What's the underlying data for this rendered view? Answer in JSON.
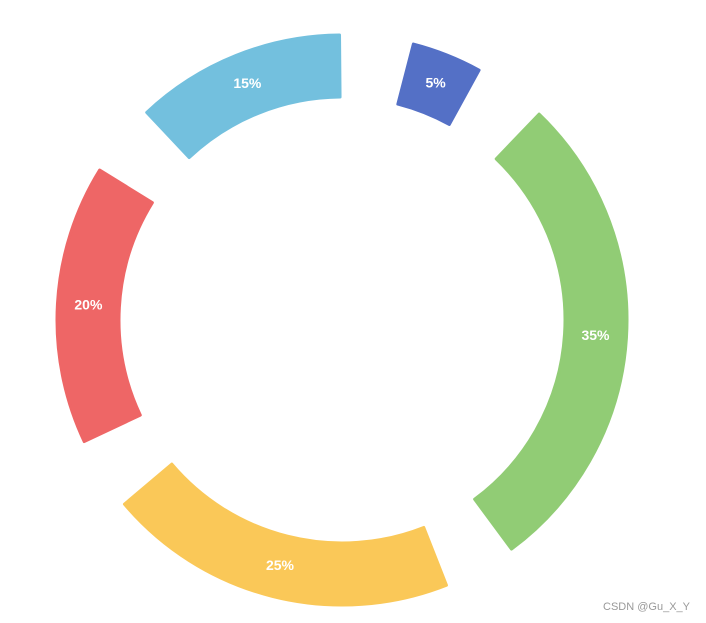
{
  "chart_data": {
    "type": "donut",
    "values": [
      5,
      35,
      25,
      20,
      15
    ],
    "value_labels": [
      "5%",
      "35%",
      "25%",
      "20%",
      "15%"
    ],
    "colors": [
      "#5470c6",
      "#91cc75",
      "#fac858",
      "#ee6666",
      "#73c0de"
    ],
    "watermark": "CSDN @Gu_X_Y"
  }
}
